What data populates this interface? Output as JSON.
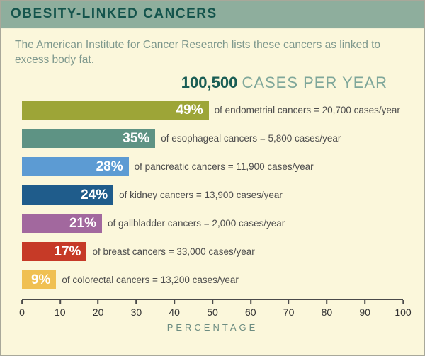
{
  "header": {
    "title": "OBESITY-LINKED CANCERS"
  },
  "subtitle": "The American Institute for Cancer Research lists these cancers as linked to excess body fat.",
  "total": {
    "number": "100,500",
    "label": "CASES PER YEAR"
  },
  "chart_data": {
    "type": "bar",
    "orientation": "horizontal",
    "title": "OBESITY-LINKED CANCERS",
    "xlabel": "PERCENTAGE",
    "xlim": [
      0,
      100
    ],
    "xticks": [
      0,
      10,
      20,
      30,
      40,
      50,
      60,
      70,
      80,
      90,
      100
    ],
    "grid": false,
    "bars": [
      {
        "pct": 49,
        "pct_label": "49%",
        "label": "of endometrial cancers = 20,700 cases/year",
        "color": "#9DA537"
      },
      {
        "pct": 35,
        "pct_label": "35%",
        "label": "of esophageal cancers = 5,800 cases/year",
        "color": "#5E9384"
      },
      {
        "pct": 28,
        "pct_label": "28%",
        "label": "of pancreatic cancers = 11,900 cases/year",
        "color": "#5C9BD3"
      },
      {
        "pct": 24,
        "pct_label": "24%",
        "label": "of kidney cancers = 13,900 cases/year",
        "color": "#1F5C8B"
      },
      {
        "pct": 21,
        "pct_label": "21%",
        "label": "of gallbladder cancers = 2,000 cases/year",
        "color": "#A2689E"
      },
      {
        "pct": 17,
        "pct_label": "17%",
        "label": "of breast cancers = 33,000 cases/year",
        "color": "#C63A27"
      },
      {
        "pct": 9,
        "pct_label": "9%",
        "label": "of colorectal cancers = 13,200 cases/year",
        "color": "#F0C052"
      }
    ]
  },
  "colors": {
    "background": "#FBF7DB",
    "header_bg": "#8EAE9D",
    "header_text": "#14544C",
    "subtitle_text": "#7E988D",
    "total_number": "#1A5E55",
    "total_label": "#7FA79A",
    "axis": "#4A4A4A"
  }
}
